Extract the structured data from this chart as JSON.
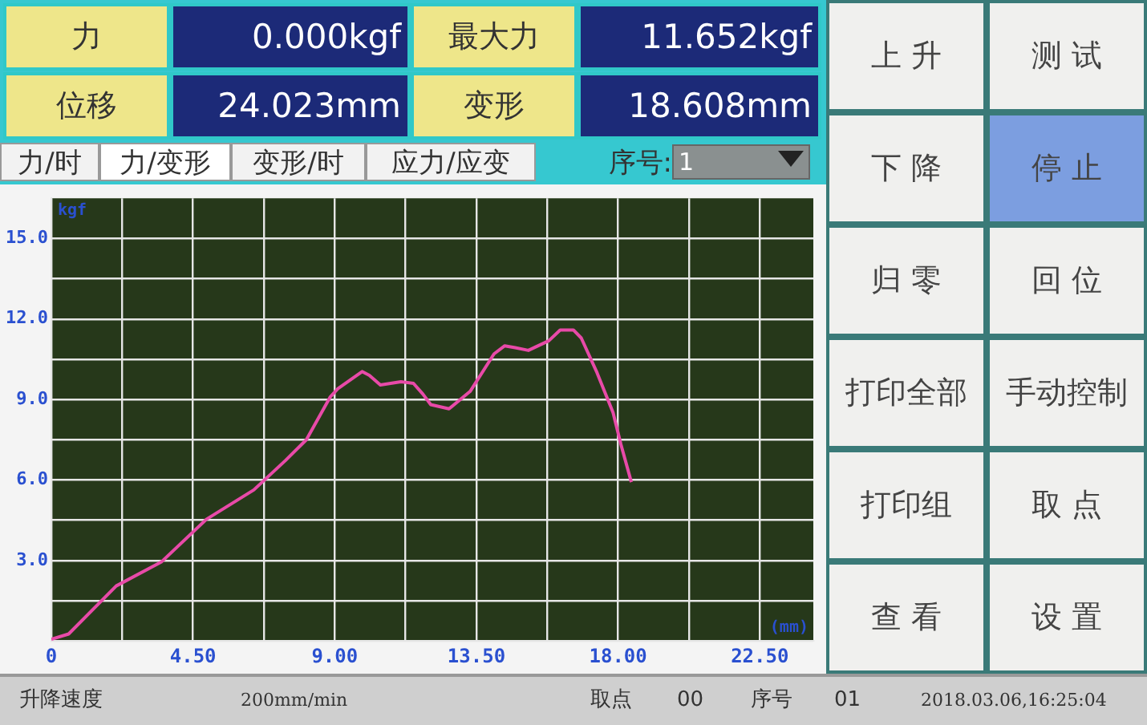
{
  "chart_data": {
    "type": "line",
    "xlabel": "(mm)",
    "ylabel": "kgf",
    "x": [
      0,
      0.55,
      2.06,
      3.49,
      4.92,
      6.43,
      7.43,
      8.1,
      8.86,
      9.1,
      9.87,
      10.1,
      10.45,
      11.1,
      11.5,
      11.8,
      12.05,
      12.63,
      13.3,
      14.06,
      14.4,
      14.73,
      15.15,
      15.8,
      16.16,
      16.58,
      16.83,
      17.33,
      17.84,
      18.09,
      18.42
    ],
    "series": [
      {
        "color": "#e84aa8",
        "values": [
          0.06,
          0.26,
          2.05,
          2.94,
          4.53,
          5.63,
          6.72,
          7.5,
          9.1,
          9.4,
          10.04,
          9.9,
          9.54,
          9.66,
          9.6,
          9.2,
          8.81,
          8.65,
          9.3,
          10.7,
          11.0,
          10.93,
          10.83,
          11.19,
          11.59,
          11.59,
          11.29,
          10.0,
          8.51,
          7.32,
          5.92
        ]
      }
    ],
    "xlim": [
      0,
      24.2
    ],
    "ylim": [
      0,
      16.5
    ],
    "xticks": [
      0,
      {
        "value": 2.25,
        "label": null
      },
      {
        "value": 4.5,
        "label": "4.50"
      },
      {
        "value": 6.75,
        "label": null
      },
      {
        "value": 9,
        "label": "9.00"
      },
      {
        "value": 11.25,
        "label": null
      },
      {
        "value": 13.5,
        "label": "13.50"
      },
      {
        "value": 15.75,
        "label": null
      },
      {
        "value": 18,
        "label": "18.00"
      },
      {
        "value": 20.25,
        "label": null
      },
      {
        "value": 22.5,
        "label": "22.50"
      }
    ],
    "yticks": [
      {
        "value": 0,
        "label": null
      },
      {
        "value": 1.5,
        "label": null
      },
      {
        "value": 3,
        "label": "3.0"
      },
      {
        "value": 4.5,
        "label": null
      },
      {
        "value": 6,
        "label": "6.0"
      },
      {
        "value": 7.5,
        "label": null
      },
      {
        "value": 9,
        "label": "9.0"
      },
      {
        "value": 10.5,
        "label": null
      },
      {
        "value": 12,
        "label": "12.0"
      },
      {
        "value": 13.5,
        "label": null
      },
      {
        "value": 15,
        "label": "15.0"
      }
    ],
    "grid": true,
    "legend": false,
    "marker": "none",
    "line_style": "solid",
    "annotations": [
      "力",
      "0.000kgf",
      "最大力",
      "11.652kgf",
      "位移",
      "24.023mm",
      "变形",
      "18.608mm",
      "力/时",
      "力/变形",
      "变形/时",
      "应力/应变",
      "序号:",
      "1",
      "上 升",
      "测 试",
      "下 降",
      "停 止",
      "归 零",
      "回 位",
      "打印全部",
      "手动控制",
      "打印组",
      "取 点",
      "查 看",
      "设 置",
      "升降速度",
      "200mm/min",
      "取点",
      "00",
      "序号",
      "01",
      "2018.03.06,16:25:04"
    ]
  }
}
